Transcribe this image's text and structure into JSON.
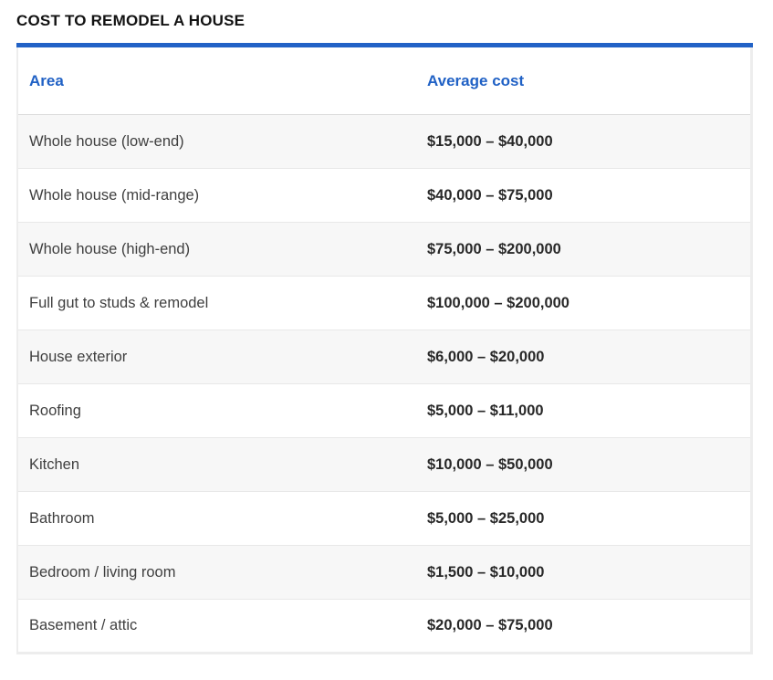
{
  "page": {
    "title": "COST TO REMODEL A HOUSE"
  },
  "colors": {
    "accent_blue": "#2262c6",
    "header_text_blue": "#2061c5",
    "row_alt_background": "#f7f7f7",
    "border_gray": "#ededed"
  },
  "table": {
    "headers": {
      "area": "Area",
      "cost": "Average cost"
    },
    "rows": [
      {
        "area": "Whole house (low-end)",
        "cost": "$15,000 – $40,000"
      },
      {
        "area": "Whole house (mid-range)",
        "cost": "$40,000 – $75,000"
      },
      {
        "area": "Whole house (high-end)",
        "cost": "$75,000 – $200,000"
      },
      {
        "area": "Full gut to studs & remodel",
        "cost": "$100,000 – $200,000"
      },
      {
        "area": "House exterior",
        "cost": "$6,000 – $20,000"
      },
      {
        "area": "Roofing",
        "cost": "$5,000 – $11,000"
      },
      {
        "area": "Kitchen",
        "cost": "$10,000 – $50,000"
      },
      {
        "area": "Bathroom",
        "cost": "$5,000 – $25,000"
      },
      {
        "area": "Bedroom / living room",
        "cost": "$1,500 – $10,000"
      },
      {
        "area": "Basement / attic",
        "cost": "$20,000 – $75,000"
      }
    ]
  }
}
